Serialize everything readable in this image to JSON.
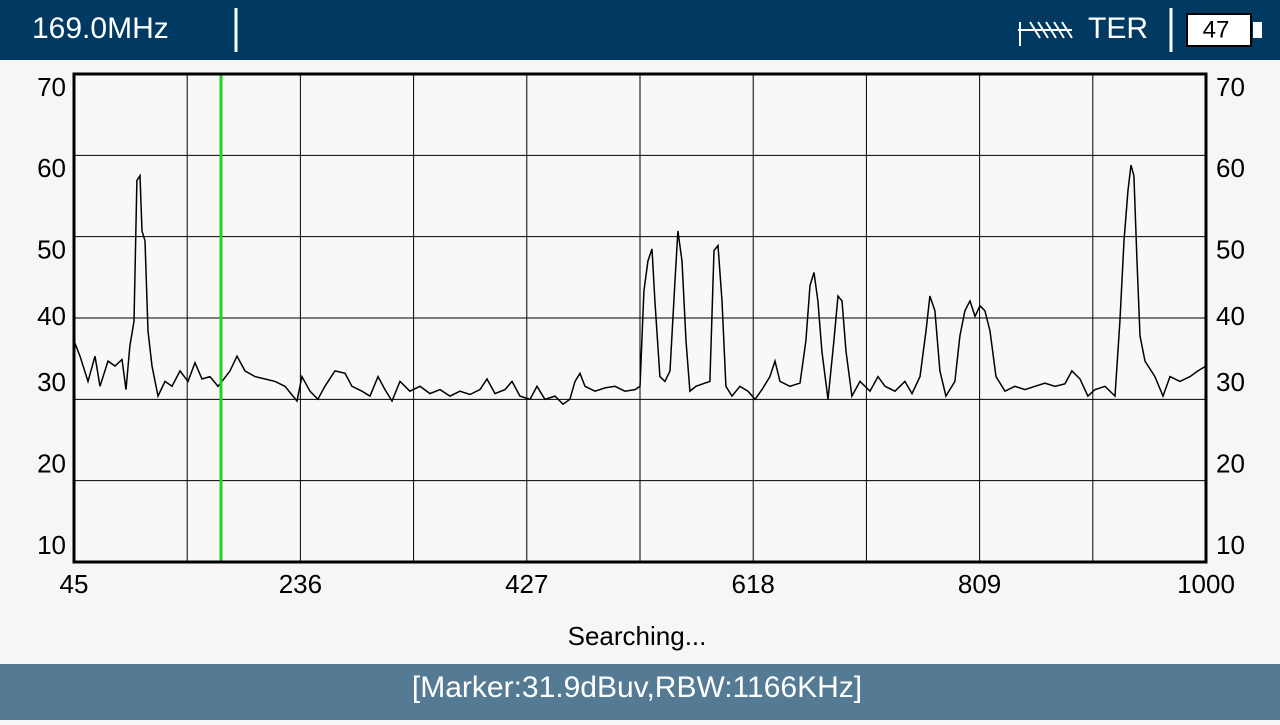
{
  "header": {
    "frequency": "169.0MHz",
    "mode": "TER",
    "battery": "47"
  },
  "chart_data": {
    "type": "line",
    "x": [
      45,
      50.1,
      56.8,
      62.7,
      66.9,
      73.7,
      79.6,
      85.5,
      88.9,
      92.2,
      95.6,
      98.1,
      100.7,
      102.4,
      104.9,
      107.4,
      110.8,
      115.9,
      121.8,
      127.7,
      134.4,
      141.2,
      147.1,
      153.0,
      159.7,
      166.5,
      169.9,
      176.6,
      182.5,
      189.3,
      197.7,
      206.1,
      214.6,
      223.0,
      233.1,
      237.3,
      244.1,
      250.8,
      256.7,
      265.2,
      273.6,
      279.5,
      288.0,
      294.7,
      301.5,
      307.4,
      313.3,
      320.0,
      328.4,
      336.9,
      345.3,
      353.8,
      362.2,
      370.6,
      379.1,
      387.5,
      393.4,
      400.2,
      408.6,
      414.5,
      421.3,
      429.7,
      435.6,
      442.3,
      450.8,
      457.5,
      463.4,
      467.7,
      471.9,
      476.1,
      484.5,
      493.0,
      501.4,
      509.8,
      518.3,
      522.5,
      525.8,
      529.2,
      532.6,
      535.1,
      539.3,
      543.5,
      547.8,
      552.0,
      554.5,
      557.9,
      561.3,
      564.6,
      569.7,
      577.3,
      581.5,
      584.9,
      588.3,
      591.7,
      595.0,
      600.1,
      606.8,
      613.6,
      619.5,
      625.4,
      632.1,
      636.4,
      640.6,
      649.0,
      657.5,
      662.5,
      665.9,
      669.3,
      672.6,
      676.0,
      681.1,
      686.1,
      689.5,
      692.9,
      696.3,
      701.3,
      708.1,
      716.5,
      723.3,
      729.2,
      737.6,
      746.0,
      752.0,
      758.7,
      763.8,
      767.1,
      771.3,
      775.5,
      780.6,
      788.2,
      792.4,
      796.6,
      800.9,
      805.1,
      809.3,
      813.5,
      817.8,
      822.8,
      830.4,
      838.8,
      847.3,
      855.7,
      864.1,
      872.6,
      881.0,
      886.9,
      893.7,
      900.4,
      906.3,
      914.8,
      923.2,
      927.4,
      930.8,
      934.2,
      936.7,
      939.2,
      941.8,
      944.3,
      948.5,
      956.9,
      963.7,
      969.6,
      978.0,
      986.5,
      993.2,
      1000
    ],
    "series": [
      {
        "color": "#000000",
        "values": [
          37.2,
          35.3,
          32.2,
          35.3,
          31.6,
          34.7,
          34.1,
          34.9,
          31.2,
          36.6,
          39.6,
          56.9,
          57.5,
          50.7,
          49.5,
          38.4,
          34.1,
          30.4,
          32.2,
          31.6,
          33.5,
          32.2,
          34.5,
          32.5,
          32.8,
          31.6,
          32.2,
          33.5,
          35.3,
          33.5,
          32.8,
          32.5,
          32.2,
          31.6,
          29.8,
          32.8,
          31.0,
          30.0,
          31.6,
          33.5,
          33.2,
          31.6,
          31.0,
          30.4,
          32.8,
          31.2,
          29.8,
          32.2,
          31.0,
          31.6,
          30.7,
          31.2,
          30.4,
          31.0,
          30.6,
          31.2,
          32.5,
          30.7,
          31.2,
          32.2,
          30.4,
          30.0,
          31.6,
          30.0,
          30.4,
          29.4,
          30.0,
          32.2,
          33.2,
          31.6,
          31.0,
          31.4,
          31.6,
          31.0,
          31.2,
          31.6,
          43.3,
          47.0,
          48.5,
          42.1,
          32.8,
          32.2,
          33.5,
          44.6,
          50.7,
          47.0,
          37.2,
          31.0,
          31.6,
          32.0,
          32.2,
          48.3,
          48.9,
          42.1,
          31.6,
          30.4,
          31.6,
          31.0,
          30.0,
          31.2,
          32.8,
          34.7,
          32.2,
          31.6,
          32.0,
          37.2,
          44.0,
          45.6,
          42.1,
          35.9,
          30.0,
          37.2,
          42.7,
          42.1,
          35.9,
          30.4,
          32.2,
          31.0,
          32.8,
          31.6,
          31.0,
          32.2,
          30.7,
          32.8,
          38.4,
          42.7,
          40.9,
          33.5,
          30.4,
          32.2,
          37.8,
          40.9,
          42.1,
          40.2,
          41.5,
          40.9,
          38.4,
          32.8,
          31.0,
          31.6,
          31.2,
          31.6,
          32.0,
          31.6,
          31.9,
          33.5,
          32.5,
          30.4,
          31.2,
          31.6,
          30.4,
          39.6,
          49.5,
          55.7,
          58.8,
          57.5,
          47.0,
          37.8,
          34.7,
          32.8,
          30.4,
          32.8,
          32.2,
          32.8,
          33.5,
          34.1
        ]
      }
    ],
    "xlim": [
      45,
      1000
    ],
    "xticks": [
      45,
      236,
      427,
      618,
      809,
      1000
    ],
    "x_minor_ticks": [
      140.5,
      331.5,
      522.5,
      713.5,
      904.5
    ],
    "ylim": [
      10,
      70
    ],
    "yticks": [
      10,
      20,
      30,
      40,
      50,
      60,
      70
    ],
    "grid": true,
    "marker": {
      "x": 169,
      "color": "#1ed41e"
    }
  },
  "status": "Searching...",
  "footer": "[Marker:31.9dBuv,RBW:1166KHz]"
}
